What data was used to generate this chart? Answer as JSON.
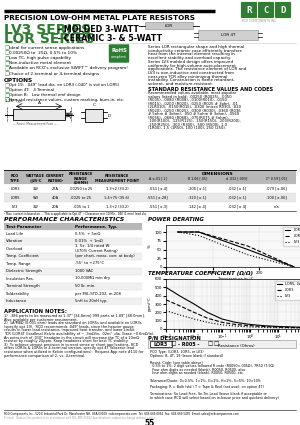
{
  "title_precision": "PRECISION LOW-OHM METAL PLATE RESISTORS",
  "title_lv3": "LV3 SERIES",
  "subtitle_lv3": " - MOLDED 3-WATT",
  "title_lor": "LOR SERIES",
  "subtitle_lor": " - CERAMIC 3- & 5-WATT",
  "rcd_letters": [
    "R",
    "C",
    "D"
  ],
  "green_color": "#2e7d32",
  "features": [
    "Ideal for current sense applications",
    "0.00250Ω to  25Ω, 0.5% to 10%",
    "Low TC, high pulse capability",
    "Non-inductive metal element",
    "Available on RCO's exclusive SWIFT™ delivery program!",
    "Choice of 2-terminal or 4-terminal designs"
  ],
  "options_title": "OPTIONS",
  "options": [
    "Opt 19:  .049\" lead dia. on LOR3 (.040\" is std on LOR5)",
    "Option 4T:   4 Terminal",
    "Option B:   Low thermal emf design",
    "Non-std resistance values, custom marking, burn-in, etc."
  ],
  "description_text": "Series LOR rectangular shape and high thermal conductivity ceramic case efficiently transfers heat from the internal element resulting in excellent stability and overload capacity. Series LV3 molded design offers improved uniformity for high-volume auto-placement applications. The resistance element of LOR and LV3 is non-inductive and constructed from near-zero TCR alloy minimizing thermal instability. Construction is flame retardant, solvent- and moisture-resistant.",
  "std_title": "STANDARD RESISTANCE VALUES AND CODES",
  "std_text": "Recommended values available, most popular values listed in bold: .00250 (R0025), .0050 (R005), .0080 (R008), .0100(R010), .0150 (R015), .0200 (R020), .0250 (R025 # 3phr), .01 (2LR010), .0150(R015), .0300 (micro R030), .020 (R020), .0250 (R025), .0300 (R030), .0360 (R036 # 5ohm # 3ohm), .050 # 5ohm # 3ohm), .0560 (R056), .0680 (R068), .075(R075 # 5ohm), .100(R100), .125(R125), .150(R150), .200(R200), .250(R250), .300 (R300), .500 (R500), 1.0 (1R00), 1.5 (1R50), 100 (100), 250 (250).",
  "perf_title": "PERFORMANCE CHARACTERISTICS",
  "perf_params": [
    [
      "Load Life",
      "0.5%  + 5mΩ"
    ],
    [
      "Vibration",
      "0.01%  + 1mΩ"
    ],
    [
      "Overload",
      "1. 5x, 1/4 rated W\n(470% Current Rating)"
    ],
    [
      "Temp. Coefficient",
      "(per chart, meas. corr. at body)"
    ],
    [
      "Temp. Range",
      "-55° to +275°C"
    ],
    [
      "Dielectric Strength",
      "1000 VAC"
    ],
    [
      "Insulation Res.",
      "10,000MΩ min dry"
    ],
    [
      "Terminal Strength",
      "50 lb. min."
    ],
    [
      "Solderability",
      "per MIL-STD-202, m.208"
    ],
    [
      "Inductance",
      "5nH to 20nH typ."
    ]
  ],
  "power_title": "POWER DERATING",
  "tc_title": "TEMPERATURE COEFFICIENT (Ω/Ω)",
  "table_rows": [
    [
      "LOR3",
      "3W",
      "27A",
      ".00250 to 25",
      "1.3+2 (33.2)"
    ],
    [
      "LOR5",
      "5W",
      "40A",
      ".0025 to 25",
      "1.4+75 (35.6)"
    ],
    [
      "LV3",
      "3W",
      "20A",
      ".005 to 1",
      "1.3+2 (33.2)"
    ]
  ],
  "dim_rows": [
    [
      ".551 [±.4]",
      ".205 [±.1]",
      ".032 [±.1]",
      ".079 [±.06]"
    ],
    [
      ".551 [±.28]",
      ".320 [±.1]",
      ".032 [±.1]",
      ".100 [±.06]"
    ],
    [
      ".551 [±.3]",
      ".142 [±.4]",
      ".032 [±.4]",
      "n/a"
    ]
  ],
  "appnotes_title": "APPLICATION NOTES:",
  "app_notes": [
    "1)  .386 parts to be measured at 1.37\" [34.8mm] 999 parts at 1.89\" [48.0mm].",
    "Also available per customer requirement.",
    "2)  1A/M8Ω (0.001 ohm) leads are standard on LOR5s and available on LOR3s",
    "(specify opt 19).  RCD recommends .049\" leads, since the heavier gauge",
    "results in lower lead resistance, improved heat transfer, and lower circuit",
    "TCR (LOR4T (leadless) Kelvin availability of ~  3mΩ/in, .02m\"  dia. (base ~0.6mΩ/in).",
    "An extra inch of .010\" headwire in the circuit will increase the TC of a 10mΩ",
    "resistor by roughly 20ppm. Keep headwires short for best TC stability.",
    "3)  To achieve utmost precision in current sense or shunt applications, RCD",
    "offers LOR3s & LOR5s in 4-terminal version, specify opt 4T (observe lead",
    "resistance when utilized in Kelvin configurations).  Request App note #110 for",
    "performance comparison of 2- vs. 4-terminal."
  ],
  "pndes_title": "P/N DESIGNATION",
  "pn_example": "LOR3    - R005 -    ",
  "bg_color": "#ffffff",
  "green_hex": "#2e7d32",
  "gray_header": "#aaaaaa",
  "footer_text": "RCD Components Inc., 520 E Industrial Park Dr, Manchester NH, USA 03109  rcdcomponents.com  Tel: 603-669-0054  Fax: 603-669-5455  Email: sales@rcdcomponents.com",
  "footer_note": "Printed:  Data in this product is in accordance with MIL-PRF-55182 Specifications subject to change without notice.",
  "page_num": "55"
}
